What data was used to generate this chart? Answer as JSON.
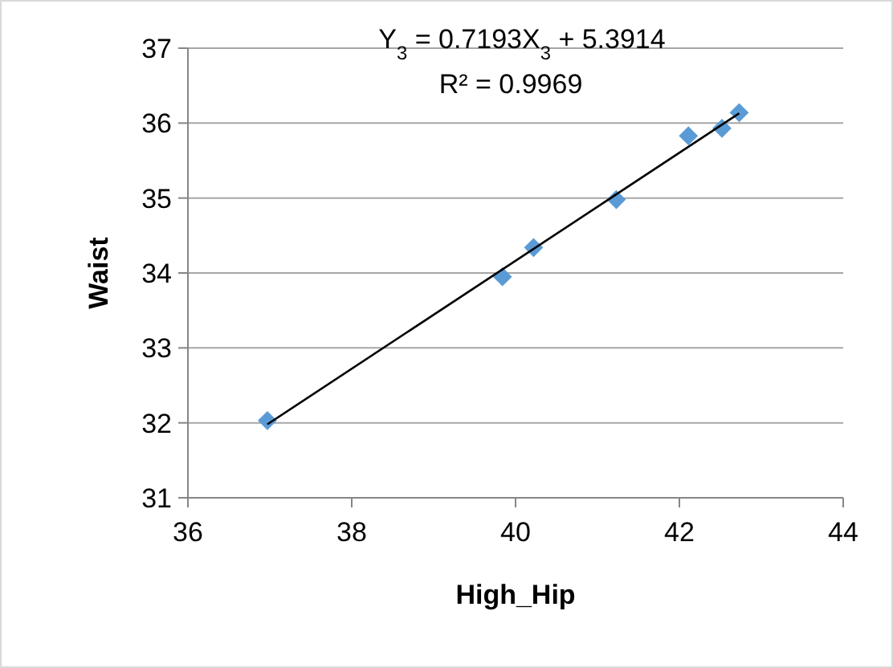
{
  "chart_data": {
    "type": "scatter",
    "xlabel": "High_Hip",
    "ylabel": "Waist",
    "x": [
      36.97,
      39.84,
      40.22,
      41.23,
      42.11,
      42.52,
      42.73
    ],
    "series": [
      {
        "color": "#5b9bd5",
        "marker": "diamond",
        "values": [
          32.03,
          33.95,
          34.34,
          34.98,
          35.83,
          35.93,
          36.14
        ]
      },
      {
        "type": "line",
        "color": "#000000",
        "x": [
          36.97,
          42.73
        ],
        "values": [
          31.98,
          36.13
        ],
        "marker": "none"
      }
    ],
    "xlim": [
      36,
      44
    ],
    "xticks": [
      36,
      38,
      40,
      42,
      44
    ],
    "ylim": [
      31,
      37
    ],
    "yticks": [
      31,
      32,
      33,
      34,
      35,
      36,
      37
    ],
    "grid": "y",
    "annotations": [
      "Y$_{3}$ = 0.7193X$_{3}$ + 5.3914",
      "R² = 0.9969"
    ]
  }
}
